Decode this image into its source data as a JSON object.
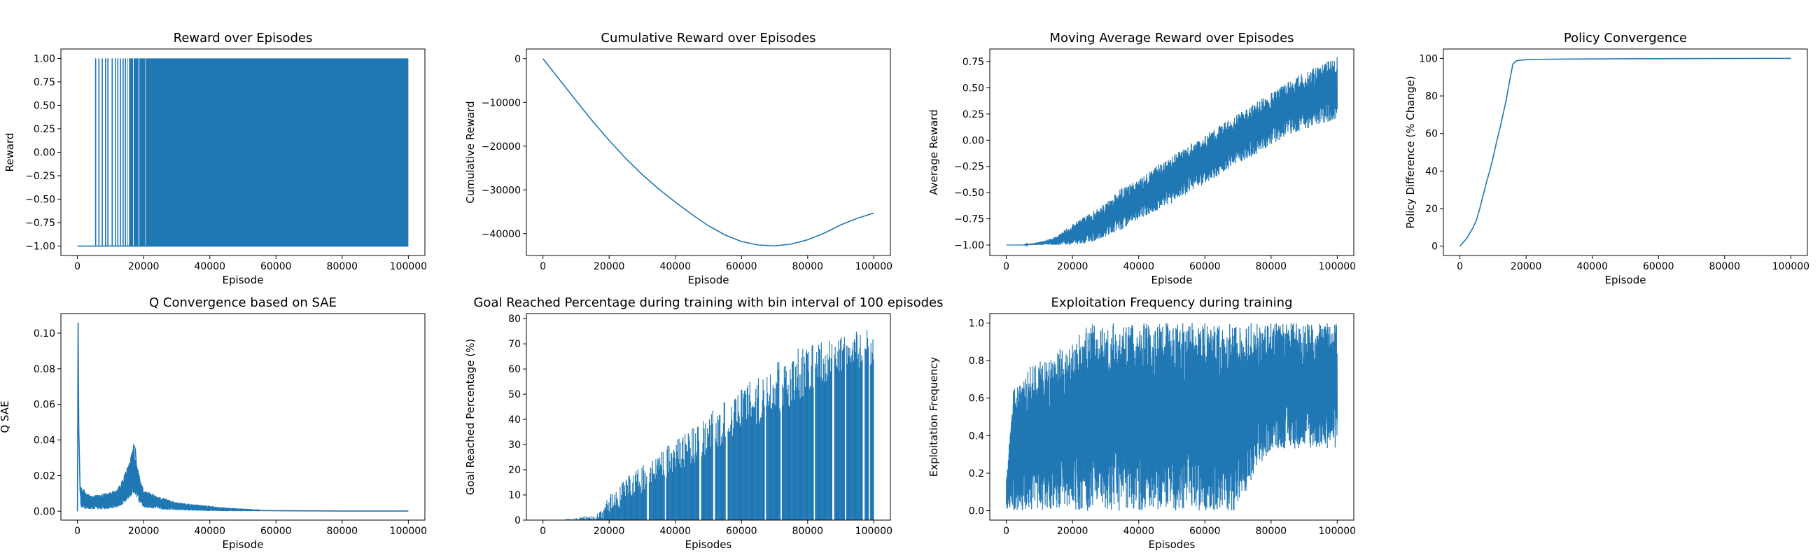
{
  "figure": {
    "suptitle": "...",
    "line_color": "#1f77b4"
  },
  "chart_data": [
    {
      "type": "line",
      "title": "Reward over Episodes",
      "xlabel": "Episode",
      "ylabel": "Reward",
      "xlim": [
        -5000,
        105000
      ],
      "ylim": [
        -1.1,
        1.1
      ],
      "xticks": [
        0,
        20000,
        40000,
        60000,
        80000,
        100000
      ],
      "yticks": [
        -1.0,
        -0.75,
        -0.5,
        -0.25,
        0.0,
        0.25,
        0.5,
        0.75,
        1.0
      ],
      "ytick_labels": [
        "−1.00",
        "−0.75",
        "−0.50",
        "−0.25",
        "0.00",
        "0.25",
        "0.50",
        "0.75",
        "1.00"
      ],
      "series": [
        {
          "x": [
            0,
            5500,
            5500,
            5500,
            6500,
            6500,
            6500,
            7500,
            7500,
            7500,
            8500,
            8500,
            8500,
            9200,
            9200,
            9200,
            10500,
            10500,
            10500,
            11500,
            11500,
            11500,
            12200,
            12200,
            12200,
            13000,
            13000,
            13000,
            13800,
            13800,
            13800,
            14500,
            14500,
            14500,
            100000
          ],
          "y": [
            -1,
            -1,
            1,
            -1,
            -1,
            1,
            -1,
            -1,
            1,
            -1,
            -1,
            1,
            -1,
            -1,
            1,
            -1,
            -1,
            1,
            -1,
            -1,
            1,
            -1,
            -1,
            1,
            -1,
            -1,
            1,
            -1,
            -1,
            1,
            -1,
            -1,
            1,
            -1,
            -1
          ]
        }
      ],
      "bands": [
        {
          "x": [
            15000,
            100000
          ],
          "y": [
            -1,
            1
          ]
        }
      ],
      "gaps": [
        [
          15200,
          15600
        ],
        [
          16800,
          17000
        ],
        [
          18500,
          18700
        ],
        [
          20500,
          20650
        ]
      ]
    },
    {
      "type": "line",
      "title": "Cumulative Reward over Episodes",
      "xlabel": "Episode",
      "ylabel": "Cumulative Reward",
      "xlim": [
        -5000,
        105000
      ],
      "ylim": [
        -45000,
        2200
      ],
      "xticks": [
        0,
        20000,
        40000,
        60000,
        80000,
        100000
      ],
      "yticks": [
        -40000,
        -30000,
        -20000,
        -10000,
        0
      ],
      "ytick_labels": [
        "−40000",
        "−30000",
        "−20000",
        "−10000",
        "0"
      ],
      "series": [
        {
          "x": [
            0,
            5000,
            10000,
            15000,
            20000,
            25000,
            30000,
            35000,
            40000,
            45000,
            50000,
            55000,
            60000,
            65000,
            70000,
            75000,
            80000,
            85000,
            90000,
            95000,
            100000
          ],
          "y": [
            0,
            -4800,
            -9600,
            -14300,
            -18700,
            -22800,
            -26500,
            -29800,
            -32800,
            -35600,
            -38200,
            -40300,
            -41800,
            -42600,
            -42800,
            -42400,
            -41400,
            -39900,
            -38000,
            -36500,
            -35300
          ]
        }
      ]
    },
    {
      "type": "line",
      "title": "Moving Average Reward over Episodes",
      "xlabel": "Episode",
      "ylabel": "Average Reward",
      "xlim": [
        -5000,
        105000
      ],
      "ylim": [
        -1.1,
        0.87
      ],
      "xticks": [
        0,
        20000,
        40000,
        60000,
        80000,
        100000
      ],
      "yticks": [
        -1.0,
        -0.75,
        -0.5,
        -0.25,
        0.0,
        0.25,
        0.5,
        0.75
      ],
      "ytick_labels": [
        "−1.00",
        "−0.75",
        "−0.50",
        "−0.25",
        "0.00",
        "0.25",
        "0.50",
        "0.75"
      ],
      "envelope": {
        "x": [
          0,
          5000,
          10000,
          15000,
          20000,
          25000,
          30000,
          35000,
          40000,
          45000,
          50000,
          55000,
          60000,
          65000,
          70000,
          75000,
          80000,
          85000,
          90000,
          95000,
          100000
        ],
        "low": [
          -1.0,
          -1.0,
          -1.0,
          -1.0,
          -1.0,
          -0.98,
          -0.92,
          -0.85,
          -0.75,
          -0.68,
          -0.6,
          -0.5,
          -0.42,
          -0.32,
          -0.22,
          -0.15,
          -0.05,
          0.05,
          0.1,
          0.15,
          0.2
        ],
        "high": [
          -1.0,
          -1.0,
          -0.97,
          -0.92,
          -0.8,
          -0.7,
          -0.6,
          -0.45,
          -0.38,
          -0.25,
          -0.15,
          -0.05,
          0.05,
          0.15,
          0.25,
          0.35,
          0.45,
          0.55,
          0.65,
          0.72,
          0.8
        ]
      }
    },
    {
      "type": "line",
      "title": "Policy Convergence",
      "xlabel": "Episode",
      "ylabel": "Policy Difference (% Change)",
      "xlim": [
        -5000,
        105000
      ],
      "ylim": [
        -5,
        105
      ],
      "xticks": [
        0,
        20000,
        40000,
        60000,
        80000,
        100000
      ],
      "yticks": [
        0,
        20,
        40,
        60,
        80,
        100
      ],
      "ytick_labels": [
        "0",
        "20",
        "40",
        "60",
        "80",
        "100"
      ],
      "series": [
        {
          "x": [
            0,
            1000,
            2000,
            3000,
            4000,
            5000,
            6000,
            7000,
            8000,
            9000,
            10000,
            11000,
            12000,
            13000,
            14000,
            15000,
            16000,
            17000,
            18000,
            20000,
            25000,
            30000,
            40000,
            50000,
            60000,
            70000,
            80000,
            90000,
            100000
          ],
          "y": [
            0,
            2,
            4,
            7,
            10,
            14,
            20,
            27,
            34,
            40,
            47,
            55,
            62,
            70,
            78,
            88,
            97,
            98.6,
            99.0,
            99.3,
            99.5,
            99.6,
            99.7,
            99.8,
            99.85,
            99.9,
            99.95,
            99.98,
            100
          ]
        }
      ]
    },
    {
      "type": "line",
      "title": "Q Convergence based on SAE",
      "xlabel": "Episode",
      "ylabel": "Q SAE",
      "xlim": [
        -5000,
        105000
      ],
      "ylim": [
        -0.005,
        0.111
      ],
      "xticks": [
        0,
        20000,
        40000,
        60000,
        80000,
        100000
      ],
      "yticks": [
        0.0,
        0.02,
        0.04,
        0.06,
        0.08,
        0.1
      ],
      "ytick_labels": [
        "0.00",
        "0.02",
        "0.04",
        "0.06",
        "0.08",
        "0.10"
      ],
      "series": [
        {
          "x": [
            0,
            200,
            400,
            600,
            800,
            1000,
            1500,
            2000,
            3000,
            5000,
            8000,
            11000,
            13000,
            14000,
            15000,
            15500,
            16000,
            16500,
            17000,
            17500,
            18000,
            18500,
            19000,
            19500,
            20000,
            22000,
            25000,
            30000,
            35000,
            40000,
            45000,
            50000,
            60000,
            70000,
            80000,
            90000,
            100000
          ],
          "y": [
            0.0,
            0.106,
            0.046,
            0.03,
            0.012,
            0.008,
            0.005,
            0.004,
            0.004,
            0.004,
            0.005,
            0.005,
            0.007,
            0.009,
            0.012,
            0.016,
            0.022,
            0.029,
            0.037,
            0.035,
            0.02,
            0.012,
            0.008,
            0.006,
            0.005,
            0.004,
            0.003,
            0.002,
            0.0015,
            0.001,
            0.0008,
            0.0005,
            0.0003,
            0.0002,
            0.0001,
            0.0001,
            0.0001
          ]
        }
      ],
      "envelope": {
        "x": [
          1000,
          3000,
          5000,
          8000,
          10000,
          12000,
          14000,
          16000,
          17000,
          18000,
          20000,
          25000,
          30000,
          35000,
          40000,
          45000,
          50000,
          55000
        ],
        "low": [
          0.002,
          0.001,
          0.001,
          0.001,
          0.0015,
          0.002,
          0.004,
          0.008,
          0.01,
          0.006,
          0.002,
          0.001,
          0.0005,
          0.0002,
          0.0001,
          0.0,
          0.0,
          0.0
        ],
        "high": [
          0.015,
          0.01,
          0.009,
          0.01,
          0.011,
          0.012,
          0.02,
          0.03,
          0.037,
          0.026,
          0.012,
          0.008,
          0.005,
          0.004,
          0.003,
          0.002,
          0.0015,
          0.001
        ]
      }
    },
    {
      "type": "bar",
      "title": "Goal Reached Percentage during training with bin interval of 100 episodes",
      "xlabel": "Episodes",
      "ylabel": "Goal Reached Percentage (%)",
      "xlim": [
        -5000,
        105000
      ],
      "ylim": [
        0,
        82
      ],
      "xticks": [
        0,
        20000,
        40000,
        60000,
        80000,
        100000
      ],
      "yticks": [
        0,
        10,
        20,
        30,
        40,
        50,
        60,
        70,
        80
      ],
      "ytick_labels": [
        "0",
        "10",
        "20",
        "30",
        "40",
        "50",
        "60",
        "70",
        "80"
      ],
      "bin_width": 100,
      "bin_range": [
        0,
        100000
      ],
      "envelope": {
        "x": [
          0,
          5000,
          10000,
          15000,
          18000,
          20000,
          25000,
          30000,
          35000,
          40000,
          45000,
          50000,
          55000,
          60000,
          65000,
          70000,
          75000,
          80000,
          85000,
          90000,
          95000,
          100000
        ],
        "low": [
          0,
          0,
          0,
          0,
          0,
          2,
          5,
          10,
          14,
          18,
          22,
          26,
          30,
          35,
          38,
          42,
          45,
          50,
          54,
          58,
          60,
          62
        ],
        "high": [
          0,
          0,
          1,
          2,
          4,
          10,
          17,
          22,
          27,
          32,
          37,
          42,
          48,
          53,
          58,
          62,
          67,
          70,
          72,
          74,
          75,
          76
        ]
      },
      "gaps": [
        [
          31500,
          32000
        ],
        [
          36800,
          37200
        ],
        [
          47200,
          47700
        ],
        [
          51500,
          51900
        ],
        [
          55200,
          55700
        ],
        [
          67000,
          67400
        ],
        [
          71800,
          72200
        ],
        [
          81800,
          82200
        ],
        [
          87500,
          87900
        ],
        [
          91200,
          91500
        ],
        [
          96700,
          97100
        ],
        [
          98500,
          98800
        ]
      ]
    },
    {
      "type": "line",
      "title": "Exploitation Frequency during training",
      "xlabel": "Episodes",
      "ylabel": "Exploitation Frequency",
      "xlim": [
        -5000,
        105000
      ],
      "ylim": [
        -0.05,
        1.05
      ],
      "xticks": [
        0,
        20000,
        40000,
        60000,
        80000,
        100000
      ],
      "yticks": [
        0.0,
        0.2,
        0.4,
        0.6,
        0.8,
        1.0
      ],
      "ytick_labels": [
        "0.0",
        "0.2",
        "0.4",
        "0.6",
        "0.8",
        "1.0"
      ],
      "envelope": {
        "x": [
          0,
          1000,
          2000,
          3000,
          5000,
          7000,
          10000,
          13000,
          15000,
          18000,
          20000,
          25000,
          30000,
          40000,
          50000,
          60000,
          70000,
          80000,
          90000,
          100000
        ],
        "low": [
          0,
          0,
          0,
          0,
          0,
          0,
          0,
          0,
          0,
          0,
          0,
          0,
          0,
          0,
          0,
          0,
          0,
          0.33,
          0.33,
          0.33
        ],
        "high": [
          0.2,
          0.4,
          0.67,
          0.67,
          0.67,
          0.8,
          0.8,
          0.8,
          0.85,
          0.9,
          0.9,
          1.0,
          1.0,
          1.0,
          1.0,
          1.0,
          1.0,
          1.0,
          1.0,
          1.0
        ]
      }
    }
  ]
}
